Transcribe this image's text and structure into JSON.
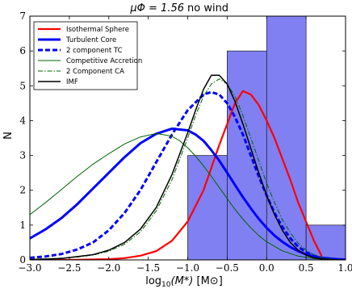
{
  "chart_data": {
    "type": "line",
    "title_math": "μΦ = 1.56",
    "title_text": "no wind",
    "xlabel_prefix": "log",
    "xlabel_sub": "10",
    "xlabel_arg": "(M*)",
    "xlabel_unit": "[M⊙]",
    "ylabel": "N",
    "xlim": [
      -3.0,
      1.0
    ],
    "ylim": [
      0,
      7
    ],
    "xticks": [
      "−3.0",
      "−2.5",
      "−2.0",
      "−1.5",
      "−1.0",
      "−0.5",
      "0.0",
      "0.5",
      "1.0"
    ],
    "yticks": [
      "0",
      "1",
      "2",
      "3",
      "4",
      "5",
      "6",
      "7"
    ],
    "histogram": {
      "color": "#8080f2",
      "bins": [
        {
          "x0": -1.0,
          "x1": -0.5,
          "count": 3
        },
        {
          "x0": -0.5,
          "x1": 0.0,
          "count": 6
        },
        {
          "x0": 0.0,
          "x1": 0.5,
          "count": 7
        },
        {
          "x0": 0.5,
          "x1": 1.0,
          "count": 1
        }
      ]
    },
    "series": [
      {
        "name": "Isothermal Sphere",
        "color": "#ff0000",
        "style": "solid",
        "width": 2.2,
        "x": [
          -3.0,
          -2.5,
          -2.0,
          -1.8,
          -1.6,
          -1.4,
          -1.2,
          -1.0,
          -0.8,
          -0.6,
          -0.4,
          -0.3,
          -0.2,
          -0.1,
          0.0,
          0.1,
          0.2,
          0.3,
          0.4,
          0.5,
          0.6,
          0.7
        ],
        "y": [
          0.0,
          0.0,
          0.02,
          0.05,
          0.12,
          0.25,
          0.55,
          1.1,
          2.0,
          3.3,
          4.5,
          4.85,
          4.75,
          4.45,
          4.0,
          3.5,
          2.9,
          2.3,
          1.65,
          1.1,
          0.55,
          0.1
        ]
      },
      {
        "name": "Turbulent Core",
        "color": "#0000ff",
        "style": "solid",
        "width": 3,
        "x": [
          -3.0,
          -2.8,
          -2.6,
          -2.4,
          -2.2,
          -2.0,
          -1.8,
          -1.6,
          -1.4,
          -1.2,
          -1.0,
          -0.9,
          -0.8,
          -0.7,
          -0.6,
          -0.5,
          -0.4,
          -0.3,
          -0.2,
          -0.1,
          0.0,
          0.1,
          0.2,
          0.3,
          0.4,
          0.5,
          0.6,
          0.7,
          0.8,
          0.9,
          1.0
        ],
        "y": [
          0.62,
          0.88,
          1.2,
          1.6,
          2.05,
          2.5,
          2.95,
          3.35,
          3.62,
          3.77,
          3.72,
          3.6,
          3.42,
          3.15,
          2.85,
          2.5,
          2.15,
          1.8,
          1.48,
          1.18,
          0.92,
          0.7,
          0.52,
          0.37,
          0.25,
          0.16,
          0.1,
          0.06,
          0.04,
          0.02,
          0.01
        ]
      },
      {
        "name": "2 component TC",
        "color": "#0000ff",
        "style": "dashed",
        "width": 3,
        "x": [
          -3.0,
          -2.8,
          -2.6,
          -2.4,
          -2.2,
          -2.0,
          -1.8,
          -1.6,
          -1.4,
          -1.2,
          -1.0,
          -0.8,
          -0.7,
          -0.6,
          -0.5,
          -0.4,
          -0.3,
          -0.2,
          -0.1,
          0.0,
          0.1,
          0.2,
          0.3,
          0.4,
          0.5,
          0.6,
          0.7,
          0.8,
          0.9,
          1.0
        ],
        "y": [
          0.06,
          0.1,
          0.17,
          0.3,
          0.5,
          0.85,
          1.35,
          2.0,
          2.8,
          3.6,
          4.3,
          4.75,
          4.82,
          4.75,
          4.5,
          4.1,
          3.6,
          3.0,
          2.4,
          1.85,
          1.35,
          0.95,
          0.62,
          0.38,
          0.22,
          0.12,
          0.06,
          0.03,
          0.01,
          0.0
        ]
      },
      {
        "name": "Competitive Accretion",
        "color": "#006400",
        "style": "solid",
        "width": 1,
        "x": [
          -3.0,
          -2.8,
          -2.6,
          -2.4,
          -2.2,
          -2.0,
          -1.8,
          -1.6,
          -1.4,
          -1.2,
          -1.1,
          -1.0,
          -0.9,
          -0.8,
          -0.7,
          -0.6,
          -0.5,
          -0.4,
          -0.3,
          -0.2,
          -0.1,
          0.0,
          0.2,
          0.4,
          0.6,
          0.8,
          1.0
        ],
        "y": [
          1.3,
          1.65,
          2.02,
          2.4,
          2.75,
          3.05,
          3.33,
          3.53,
          3.63,
          3.55,
          3.42,
          3.22,
          2.98,
          2.7,
          2.4,
          2.08,
          1.76,
          1.45,
          1.17,
          0.92,
          0.7,
          0.52,
          0.26,
          0.11,
          0.04,
          0.01,
          0.0
        ]
      },
      {
        "name": "2 Component CA",
        "color": "#006400",
        "style": "dashdot",
        "width": 1,
        "x": [
          -3.0,
          -2.8,
          -2.6,
          -2.4,
          -2.2,
          -2.0,
          -1.8,
          -1.6,
          -1.4,
          -1.2,
          -1.0,
          -0.9,
          -0.8,
          -0.7,
          -0.6,
          -0.5,
          -0.4,
          -0.3,
          -0.2,
          -0.1,
          0.0,
          0.1,
          0.2,
          0.3,
          0.4,
          0.5,
          0.6,
          0.7,
          0.8,
          0.9,
          1.0
        ],
        "y": [
          0.02,
          0.03,
          0.05,
          0.08,
          0.14,
          0.25,
          0.45,
          0.8,
          1.4,
          2.3,
          3.5,
          4.15,
          4.7,
          5.05,
          5.2,
          5.05,
          4.7,
          4.15,
          3.5,
          2.85,
          2.2,
          1.65,
          1.15,
          0.78,
          0.48,
          0.28,
          0.15,
          0.07,
          0.03,
          0.01,
          0.0
        ]
      },
      {
        "name": "IMF",
        "color": "#000000",
        "style": "solid",
        "width": 1.5,
        "x": [
          -3.0,
          -2.6,
          -2.2,
          -2.0,
          -1.8,
          -1.6,
          -1.4,
          -1.2,
          -1.0,
          -0.9,
          -0.8,
          -0.7,
          -0.6,
          -0.5,
          -0.4,
          -0.3,
          -0.2,
          -0.1,
          0.0,
          0.1,
          0.2,
          0.3,
          0.4,
          0.5,
          0.6,
          0.7,
          0.8,
          0.9,
          1.0
        ],
        "y": [
          0.01,
          0.04,
          0.15,
          0.28,
          0.5,
          0.88,
          1.5,
          2.45,
          3.65,
          4.3,
          4.9,
          5.3,
          5.3,
          5.05,
          4.55,
          3.9,
          3.2,
          2.5,
          1.85,
          1.3,
          0.85,
          0.5,
          0.28,
          0.14,
          0.06,
          0.025,
          0.01,
          0.0,
          0.0
        ]
      }
    ]
  }
}
